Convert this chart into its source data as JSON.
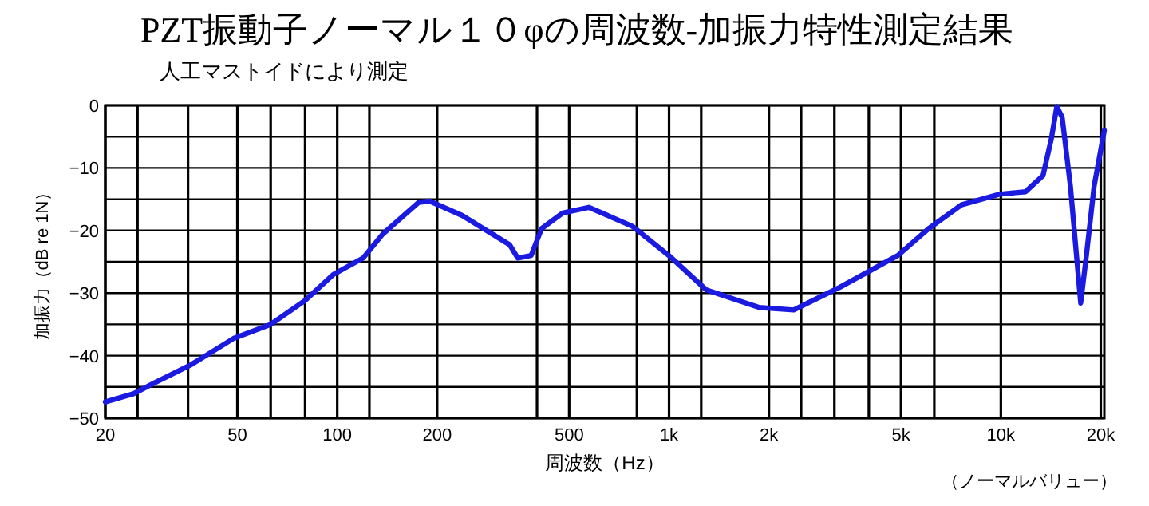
{
  "chart_data": {
    "type": "line",
    "title": "PZT振動子ノーマル１０φの周波数-加振力特性測定結果",
    "subtitle": "人工マストイドにより測定",
    "xlabel": "周波数（Hz）",
    "ylabel": "加振力（dB re 1N）",
    "annotations": [
      "（ノーマルバリュー）"
    ],
    "log": "x",
    "grid": true,
    "marker": "none",
    "line_style": "solid",
    "xlim": [
      20,
      20500
    ],
    "ylim": [
      -50,
      0
    ],
    "xticks": [
      20,
      {
        "value": 25,
        "label": null
      },
      {
        "value": 35.5,
        "label": null
      },
      50,
      {
        "value": 63,
        "label": null
      },
      {
        "value": 80,
        "label": null
      },
      100,
      {
        "value": 125,
        "label": null
      },
      200,
      {
        "value": 400,
        "label": null
      },
      500,
      {
        "value": 800,
        "label": null
      },
      {
        "value": 1000,
        "label": "1k"
      },
      {
        "value": 1250,
        "label": null
      },
      {
        "value": 2000,
        "label": "2k"
      },
      {
        "value": 2500,
        "label": null
      },
      {
        "value": 3150,
        "label": null
      },
      {
        "value": 4000,
        "label": null
      },
      {
        "value": 5000,
        "label": "5k"
      },
      {
        "value": 6300,
        "label": null
      },
      {
        "value": 10000,
        "label": "10k"
      },
      {
        "value": 20000,
        "label": "20k"
      }
    ],
    "yticks": [
      0,
      {
        "value": -5,
        "label": null
      },
      -10,
      {
        "value": -15,
        "label": null
      },
      -20,
      {
        "value": -25,
        "label": null
      },
      -30,
      {
        "value": -35,
        "label": null
      },
      -40,
      {
        "value": -45,
        "label": null
      },
      -50
    ],
    "series": [
      {
        "color": "#1a1ae0",
        "x": [
          20,
          24.3,
          28,
          36.4,
          48.9,
          63,
          79.9,
          97.5,
          119.7,
          137,
          176,
          190,
          238,
          331,
          350,
          384,
          413,
          478,
          573,
          774,
          999,
          1296,
          1870,
          2375,
          3265,
          4890,
          6060,
          7610,
          9900,
          11870,
          13400,
          14200,
          14740,
          15300,
          16200,
          17400,
          18100,
          19100,
          20500
        ],
        "values": [
          -47.4,
          -46.1,
          -44.4,
          -41.4,
          -37.2,
          -35.0,
          -31.2,
          -27.0,
          -24.4,
          -20.6,
          -15.5,
          -15.3,
          -17.6,
          -22.3,
          -24.4,
          -24.0,
          -19.7,
          -17.2,
          -16.3,
          -19.3,
          -24.0,
          -29.5,
          -32.3,
          -32.7,
          -29.1,
          -24.0,
          -19.7,
          -15.9,
          -14.2,
          -13.8,
          -11.2,
          -5.3,
          -0.2,
          -1.9,
          -12.9,
          -31.6,
          -24.0,
          -12.9,
          -4.0
        ]
      }
    ]
  }
}
